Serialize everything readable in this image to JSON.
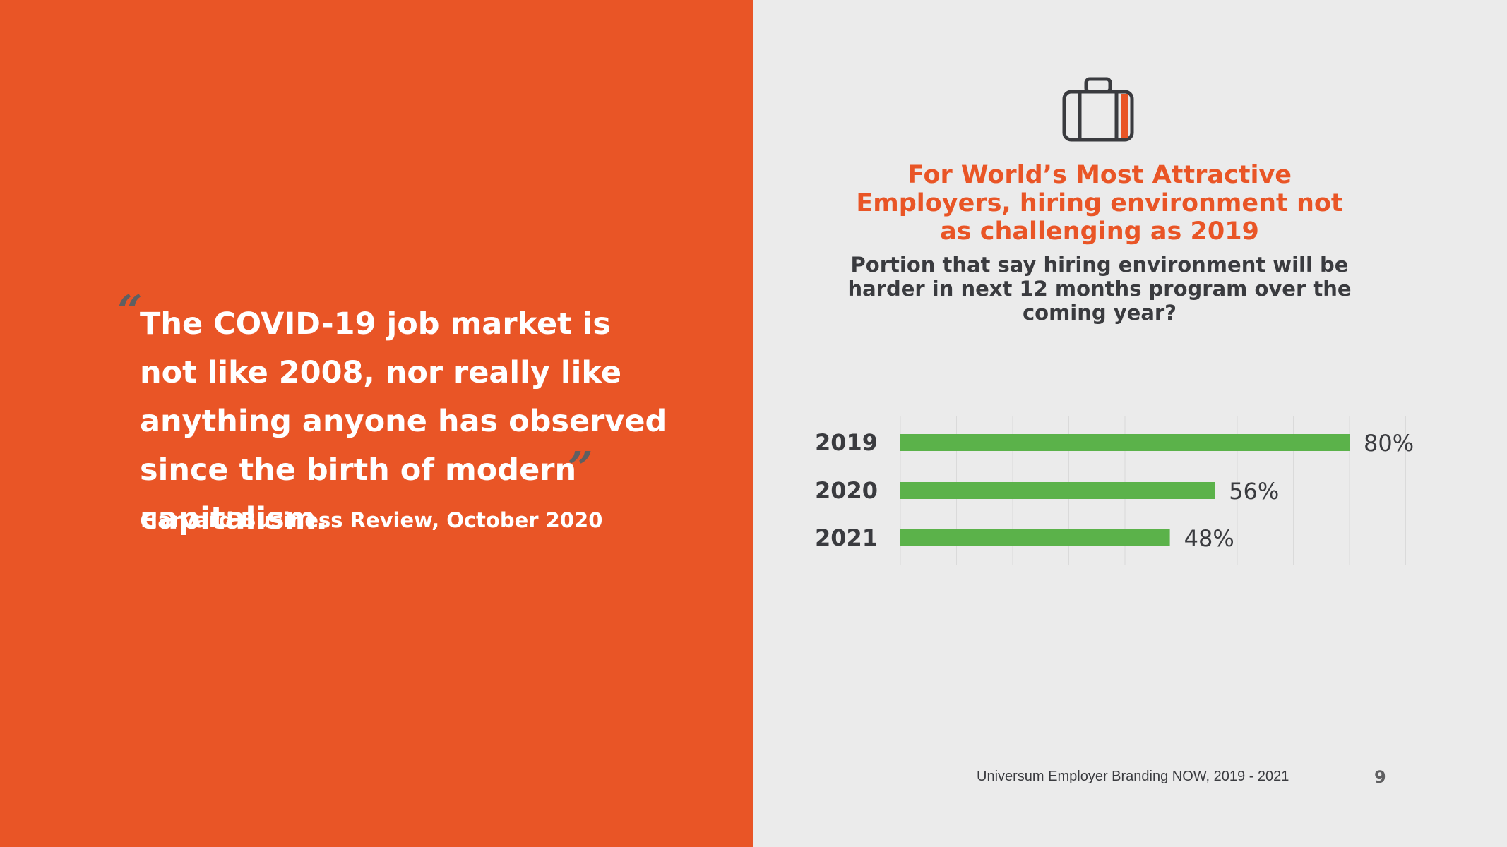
{
  "quote": {
    "text": "The COVID-19 job market is not like 2008, nor really like anything anyone has observed since the birth of modern capitalism.",
    "open_mark": "“",
    "close_mark": "”",
    "source": "Harvard Business Review, October 2020"
  },
  "icon": "briefcase-icon",
  "colors": {
    "accent": "#E95526",
    "bar": "#5BB24A",
    "text_dark": "#3A3B3F",
    "panel_bg": "#EBEBEB"
  },
  "chart_data": {
    "type": "bar",
    "orientation": "horizontal",
    "title": "For World’s Most Attractive Employers, hiring environment not as challenging as 2019",
    "subtitle": "Portion that say hiring environment will be harder in next 12 months program over the coming year?",
    "categories": [
      "2019",
      "2020",
      "2021"
    ],
    "values": [
      80,
      56,
      48
    ],
    "value_labels": [
      "80%",
      "56%",
      "48%"
    ],
    "xlim": [
      0,
      100
    ],
    "grid": true,
    "legend": "none"
  },
  "footer": {
    "text": "Universum Employer Branding NOW, 2019 - 2021",
    "page": "9"
  }
}
